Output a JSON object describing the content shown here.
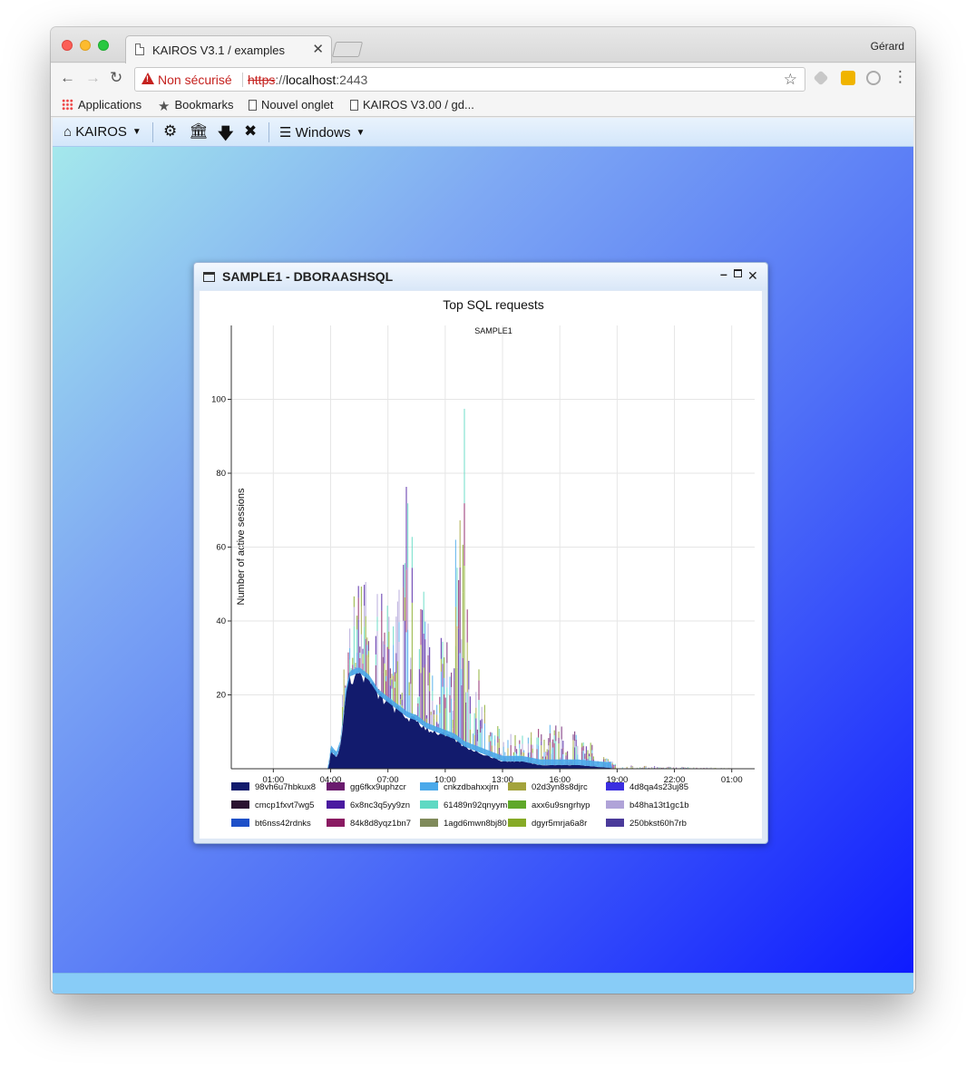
{
  "browser": {
    "tab_title": "KAIROS V3.1 / examples",
    "tab_close": "✕",
    "profile_name": "Gérard",
    "security_label": "Non sécurisé",
    "url_scheme": "https",
    "url_sep": "://",
    "url_host": "localhost",
    "url_port": ":2443",
    "bookmarks": [
      "Applications",
      "Bookmarks",
      "Nouvel onglet",
      "KAIROS V3.00 / gd..."
    ]
  },
  "app_menu": {
    "home_label": "KAIROS",
    "windows_label": "Windows"
  },
  "app_window": {
    "title": "SAMPLE1 - DBORAASHSQL"
  },
  "chart_data": {
    "type": "area",
    "title": "Top SQL requests",
    "subtitle": "SAMPLE1",
    "xlabel": "",
    "ylabel": "Number of active sessions",
    "x_ticks": [
      "01:00",
      "04:00",
      "07:00",
      "10:00",
      "13:00",
      "16:00",
      "19:00",
      "22:00",
      "01:00"
    ],
    "x_hours": [
      1,
      4,
      7,
      10,
      13,
      16,
      19,
      22,
      25
    ],
    "x_range_hours": [
      -1.2,
      26.2
    ],
    "y_ticks": [
      20,
      40,
      60,
      80,
      100
    ],
    "ylim": [
      0,
      120
    ],
    "grid": true,
    "legend_placement": "bottom",
    "legend": [
      {
        "name": "98vh6u7hbkux8",
        "color": "#121b6d"
      },
      {
        "name": "gg6fkx9uphzcr",
        "color": "#6a1b6e"
      },
      {
        "name": "cnkzdbahxxjrn",
        "color": "#4aa9ea"
      },
      {
        "name": "02d3yn8s8djrc",
        "color": "#a3a33c"
      },
      {
        "name": "4d8qa4s23uj85",
        "color": "#3b2ee0"
      },
      {
        "name": "cmcp1fxvt7wg5",
        "color": "#2b1230"
      },
      {
        "name": "6x8nc3q5yy9zn",
        "color": "#4a1aa0"
      },
      {
        "name": "61489n92qnyym",
        "color": "#5fd9c3"
      },
      {
        "name": "axx6u9sngrhyp",
        "color": "#5fa82a"
      },
      {
        "name": "b48ha13t1gc1b",
        "color": "#b0a3d8"
      },
      {
        "name": "bt6nss42rdnks",
        "color": "#1e50c8"
      },
      {
        "name": "84k8d8yqz1bn7",
        "color": "#8a1a62"
      },
      {
        "name": "1agd6mwn8bj80",
        "color": "#7f8a5a"
      },
      {
        "name": "dgyr5mrja6a8r",
        "color": "#86aa26"
      },
      {
        "name": "250bkst60h7rb",
        "color": "#4a3a9a"
      }
    ],
    "series_profile": {
      "x_hours": [
        -1.2,
        3.9,
        4.0,
        4.3,
        4.5,
        4.8,
        5.0,
        5.5,
        6.0,
        6.5,
        7.0,
        7.5,
        8.0,
        8.5,
        9.0,
        9.5,
        10.0,
        10.5,
        11.0,
        11.5,
        12.0,
        12.5,
        13.0,
        14.0,
        15.0,
        16.0,
        17.0,
        18.0,
        18.5,
        19.0,
        26.2
      ],
      "base": [
        0,
        0,
        5,
        3,
        6,
        20,
        25,
        26,
        24,
        20,
        18,
        16,
        14,
        13,
        11,
        10,
        9,
        8,
        6,
        5,
        4,
        3,
        2,
        2,
        1,
        1,
        1,
        0.5,
        0.3,
        0,
        0
      ],
      "peak": [
        0,
        0,
        6,
        5,
        10,
        38,
        45,
        55,
        52,
        48,
        50,
        62,
        78,
        55,
        48,
        42,
        38,
        60,
        98,
        35,
        22,
        14,
        10,
        9,
        12,
        14,
        10,
        6,
        3,
        1,
        0
      ]
    }
  }
}
